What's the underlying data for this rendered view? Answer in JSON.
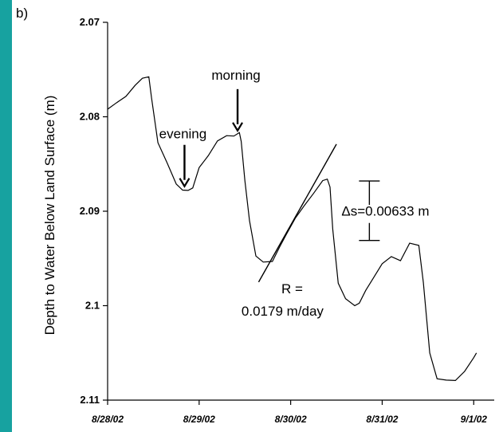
{
  "chart_data": {
    "type": "line",
    "panel_label": "b)",
    "ylabel": "Depth to Water Below Land Surface (m)",
    "xlabel": "",
    "y_inverted": true,
    "ylim": [
      2.07,
      2.11
    ],
    "yticks": [
      2.07,
      2.08,
      2.09,
      2.1,
      2.11
    ],
    "ytick_labels": [
      "2.07",
      "2.08",
      "2.09",
      "2.1",
      "2.11"
    ],
    "x_range": [
      0,
      4.05
    ],
    "xticks": [
      0,
      1,
      2,
      3,
      4
    ],
    "xtick_labels": [
      "8/28/02",
      "8/29/02",
      "8/30/02",
      "8/31/02",
      "9/1/02"
    ],
    "grid": false,
    "series": [
      {
        "x": [
          0.0,
          0.1,
          0.2,
          0.3,
          0.38,
          0.45,
          0.48,
          0.55,
          0.65,
          0.75,
          0.82,
          0.88,
          0.93,
          1.0,
          1.1,
          1.2,
          1.3,
          1.38,
          1.44,
          1.46,
          1.5,
          1.55,
          1.62,
          1.7,
          1.8,
          1.88,
          1.95,
          2.05,
          2.15,
          2.25,
          2.35,
          2.4,
          2.43,
          2.46,
          2.52,
          2.6,
          2.7,
          2.75,
          2.82,
          2.9,
          3.0,
          3.1,
          3.2,
          3.3,
          3.4,
          3.45,
          3.52,
          3.6,
          3.7,
          3.8,
          3.9,
          4.0,
          4.03
        ],
        "y": [
          2.0792,
          2.0785,
          2.0776,
          2.0768,
          2.0758,
          2.076,
          2.078,
          2.0825,
          2.085,
          2.087,
          2.088,
          2.0878,
          2.0873,
          2.0855,
          2.084,
          2.0828,
          2.082,
          2.0818,
          2.0818,
          2.0825,
          2.087,
          2.091,
          2.0945,
          2.0955,
          2.0952,
          2.094,
          2.0925,
          2.0905,
          2.0895,
          2.088,
          2.087,
          2.0866,
          2.0872,
          2.092,
          2.0975,
          2.0995,
          2.1,
          2.0995,
          2.0985,
          2.097,
          2.0958,
          2.0948,
          2.095,
          2.0935,
          2.0935,
          2.0978,
          2.105,
          2.1075,
          2.108,
          2.1078,
          2.1072,
          2.1055,
          2.105
        ]
      }
    ],
    "trend_line": {
      "x": [
        1.65,
        2.5
      ],
      "y": [
        2.0975,
        2.0829
      ]
    },
    "annotations": {
      "morning": {
        "label": "morning",
        "x": 1.42,
        "y": 2.0818
      },
      "evening": {
        "label": "evening",
        "x": 0.84,
        "y": 2.0877
      },
      "slope_label_1": "R =",
      "slope_label_2": "0.0179 m/day",
      "delta_label": "Δs=0.00633 m",
      "delta_bracket": {
        "x": 2.86,
        "y_top": 2.0868,
        "y_bottom": 2.0931
      }
    }
  }
}
